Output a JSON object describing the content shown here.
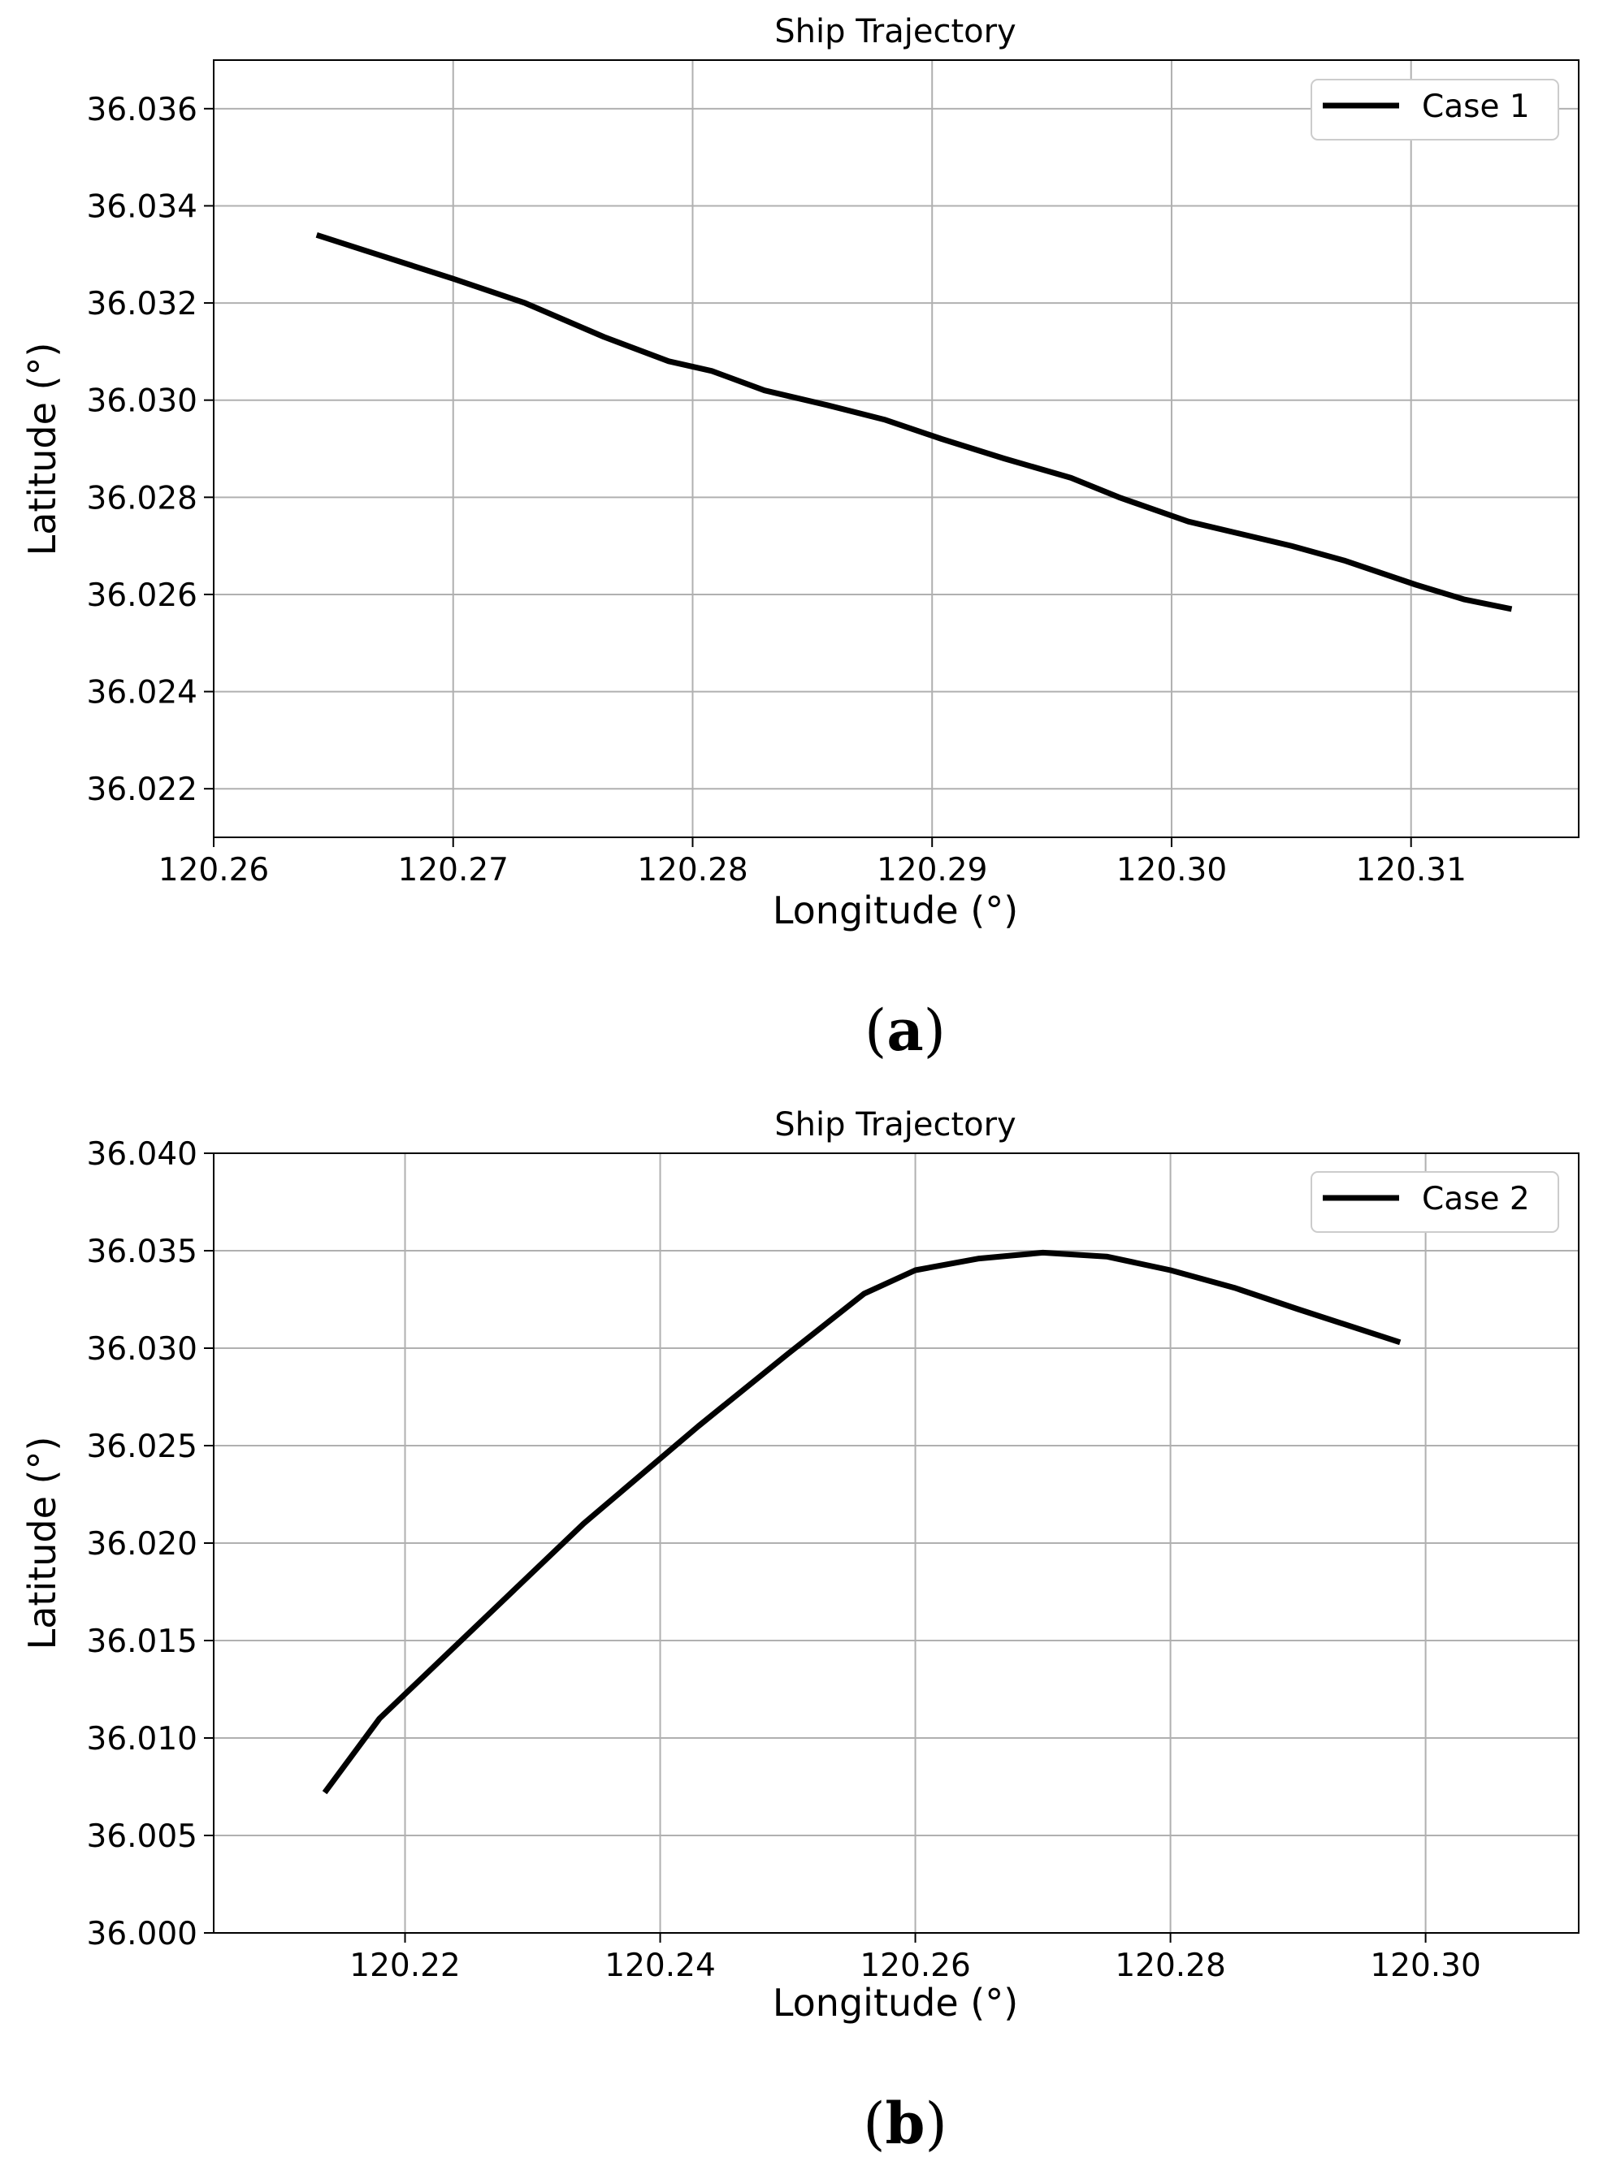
{
  "panel_labels": [
    "a",
    "b"
  ],
  "chart_data": [
    {
      "type": "line",
      "title": "Ship Trajectory",
      "xlabel": "Longitude (°)",
      "ylabel": "Latitude (°)",
      "xlim": [
        120.26,
        120.317
      ],
      "ylim": [
        36.021,
        36.037
      ],
      "xticks": [
        120.26,
        120.27,
        120.28,
        120.29,
        120.3,
        120.31
      ],
      "xtick_labels": [
        "120.26",
        "120.27",
        "120.28",
        "120.29",
        "120.30",
        "120.31"
      ],
      "yticks": [
        36.022,
        36.024,
        36.026,
        36.028,
        36.03,
        36.032,
        36.034,
        36.036
      ],
      "ytick_labels": [
        "36.022",
        "36.024",
        "36.026",
        "36.028",
        "36.030",
        "36.032",
        "36.034",
        "36.036"
      ],
      "grid": true,
      "legend_position": "top-right",
      "series": [
        {
          "name": "Case 1",
          "color": "#000000",
          "x": [
            120.2643,
            120.2662,
            120.27,
            120.273,
            120.2763,
            120.279,
            120.2808,
            120.283,
            120.2856,
            120.288,
            120.2904,
            120.293,
            120.2958,
            120.2978,
            120.3007,
            120.305,
            120.3072,
            120.3102,
            120.3122,
            120.3142
          ],
          "y": [
            36.0334,
            36.0331,
            36.0325,
            36.032,
            36.0313,
            36.0308,
            36.0306,
            36.0302,
            36.0299,
            36.0296,
            36.0292,
            36.0288,
            36.0284,
            36.028,
            36.0275,
            36.027,
            36.0267,
            36.0262,
            36.0259,
            36.0257
          ]
        }
      ]
    },
    {
      "type": "line",
      "title": "Ship Trajectory",
      "xlabel": "Longitude (°)",
      "ylabel": "Latitude (°)",
      "xlim": [
        120.205,
        120.312
      ],
      "ylim": [
        36.0,
        36.04
      ],
      "xticks": [
        120.22,
        120.24,
        120.26,
        120.28,
        120.3
      ],
      "xtick_labels": [
        "120.22",
        "120.24",
        "120.26",
        "120.28",
        "120.30"
      ],
      "yticks": [
        36.0,
        36.005,
        36.01,
        36.015,
        36.02,
        36.025,
        36.03,
        36.035,
        36.04
      ],
      "ytick_labels": [
        "36.000",
        "36.005",
        "36.010",
        "36.015",
        "36.020",
        "36.025",
        "36.030",
        "36.035",
        "36.040"
      ],
      "grid": true,
      "legend_position": "top-right",
      "series": [
        {
          "name": "Case 2",
          "color": "#000000",
          "x": [
            120.2137,
            120.218,
            120.226,
            120.234,
            120.243,
            120.25,
            120.256,
            120.26,
            120.265,
            120.27,
            120.275,
            120.28,
            120.285,
            120.29,
            120.298
          ],
          "y": [
            36.0072,
            36.011,
            36.016,
            36.021,
            36.026,
            36.0297,
            36.0328,
            36.034,
            36.0346,
            36.0349,
            36.0347,
            36.034,
            36.0331,
            36.032,
            36.0303
          ]
        }
      ]
    }
  ]
}
